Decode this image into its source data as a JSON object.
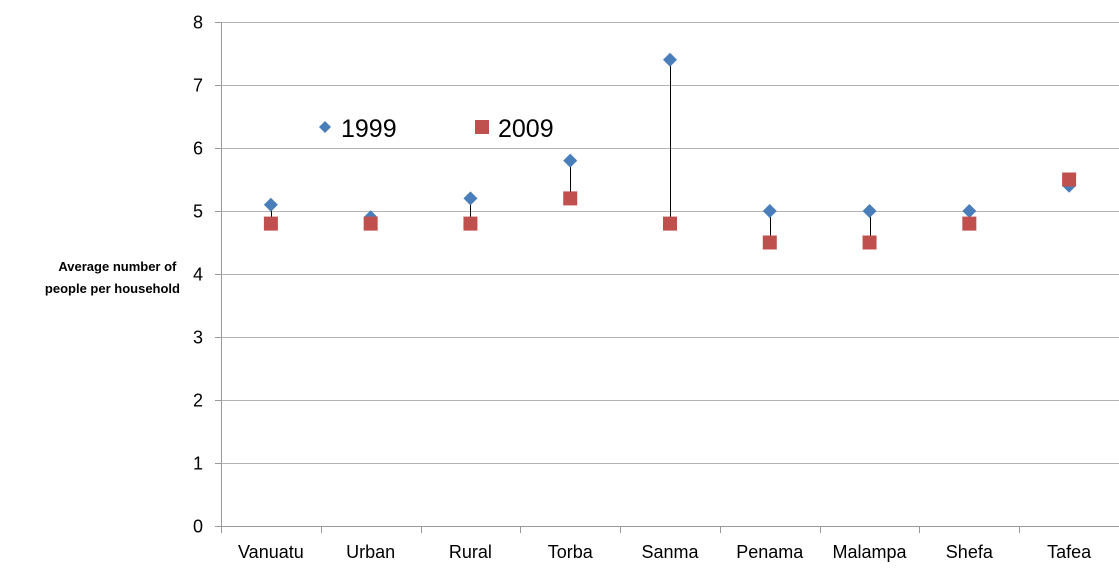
{
  "chart_data": {
    "type": "scatter",
    "title": "",
    "xlabel": "",
    "ylabel_lines": [
      "Average number of",
      "people per household"
    ],
    "ylim": [
      0,
      8
    ],
    "yticks": [
      "0",
      "1",
      "2",
      "3",
      "4",
      "5",
      "6",
      "7",
      "8"
    ],
    "grid": true,
    "legend_position": "upper-left",
    "drop_lines": true,
    "categories": [
      "Vanuatu",
      "Urban",
      "Rural",
      "Torba",
      "Sanma",
      "Penama",
      "Malampa",
      "Shefa",
      "Tafea"
    ],
    "series": [
      {
        "name": "1999",
        "marker": "diamond",
        "color": "#4a7ebb",
        "values": [
          5.1,
          4.9,
          5.2,
          5.8,
          7.4,
          5.0,
          5.0,
          5.0,
          5.4
        ]
      },
      {
        "name": "2009",
        "marker": "square",
        "color": "#c0504d",
        "values": [
          4.8,
          4.8,
          4.8,
          5.2,
          4.8,
          4.5,
          4.5,
          4.8,
          5.5
        ]
      }
    ]
  }
}
